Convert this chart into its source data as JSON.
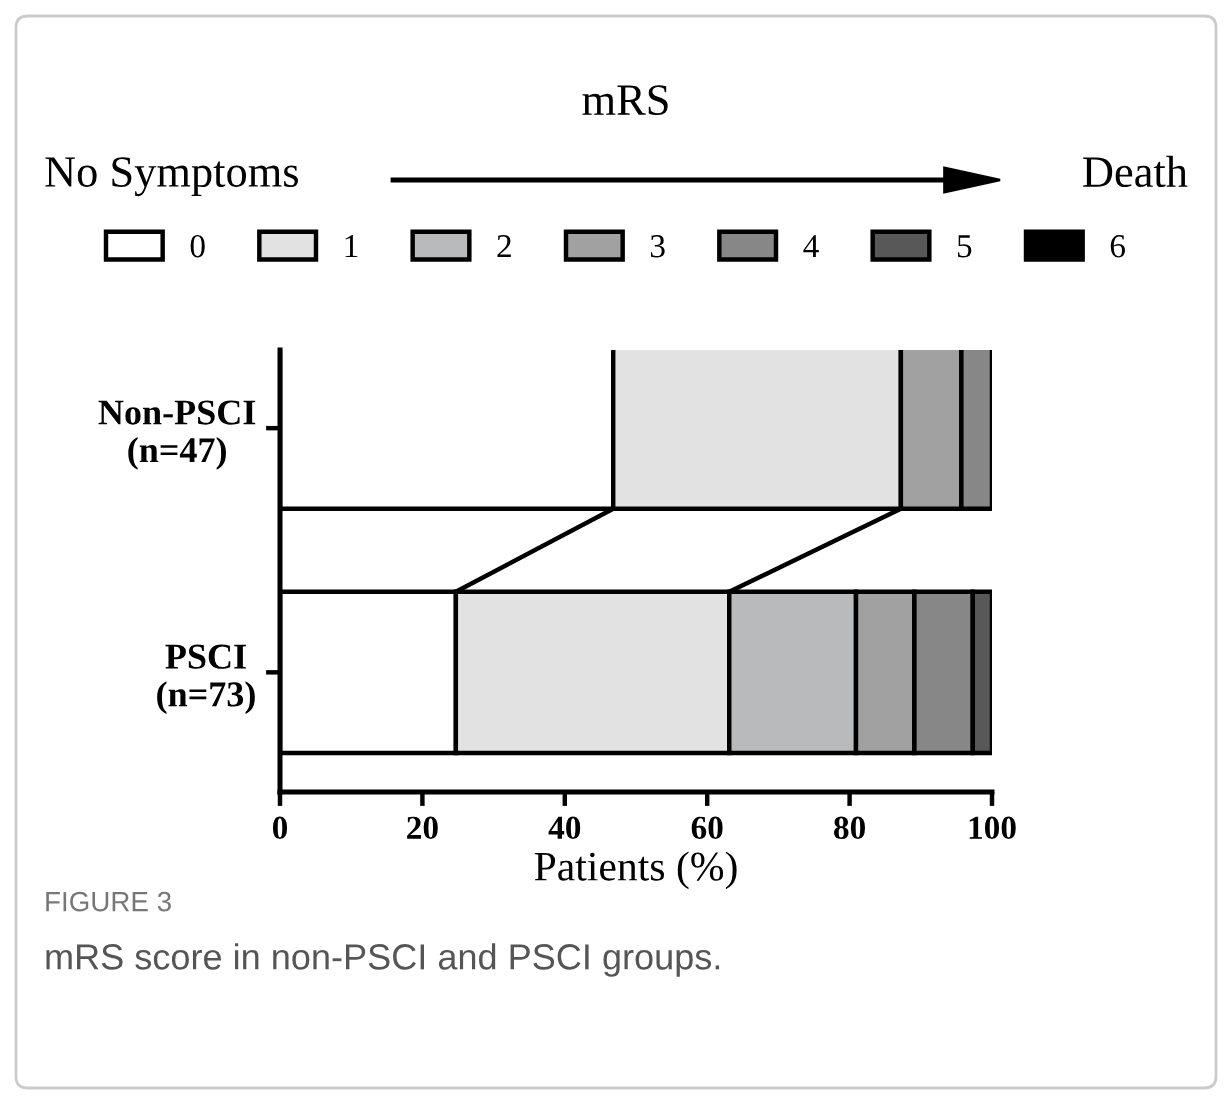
{
  "chart_data": {
    "type": "bar",
    "orientation": "horizontal",
    "stacked": true,
    "categories": [
      "Non-PSCI\n(n=47)",
      "PSCI\n(n=73)"
    ],
    "series": [
      {
        "name": "0",
        "color": "#ffffff",
        "values": [
          46.8,
          24.7
        ]
      },
      {
        "name": "1",
        "color": "#e1e2e1",
        "values": [
          40.4,
          38.4
        ]
      },
      {
        "name": "2",
        "color": "#b9babb",
        "values": [
          0,
          17.8
        ]
      },
      {
        "name": "3",
        "color": "#a0a1a0",
        "values": [
          8.5,
          8.2
        ]
      },
      {
        "name": "4",
        "color": "#878787",
        "values": [
          4.3,
          8.2
        ]
      },
      {
        "name": "5",
        "color": "#585858",
        "values": [
          0,
          2.7
        ]
      },
      {
        "name": "6",
        "color": "#000000",
        "values": [
          0,
          0
        ]
      }
    ],
    "xlabel": "Patients (%)",
    "xlim": [
      0,
      100
    ],
    "xticks": [
      0,
      20,
      40,
      60,
      80,
      100
    ],
    "grid": false,
    "legend": "top",
    "annotations": [
      "mRS",
      "No Symptoms",
      "Death",
      "FIGURE 3",
      "mRS score in non-PSCI and PSCI groups."
    ]
  }
}
